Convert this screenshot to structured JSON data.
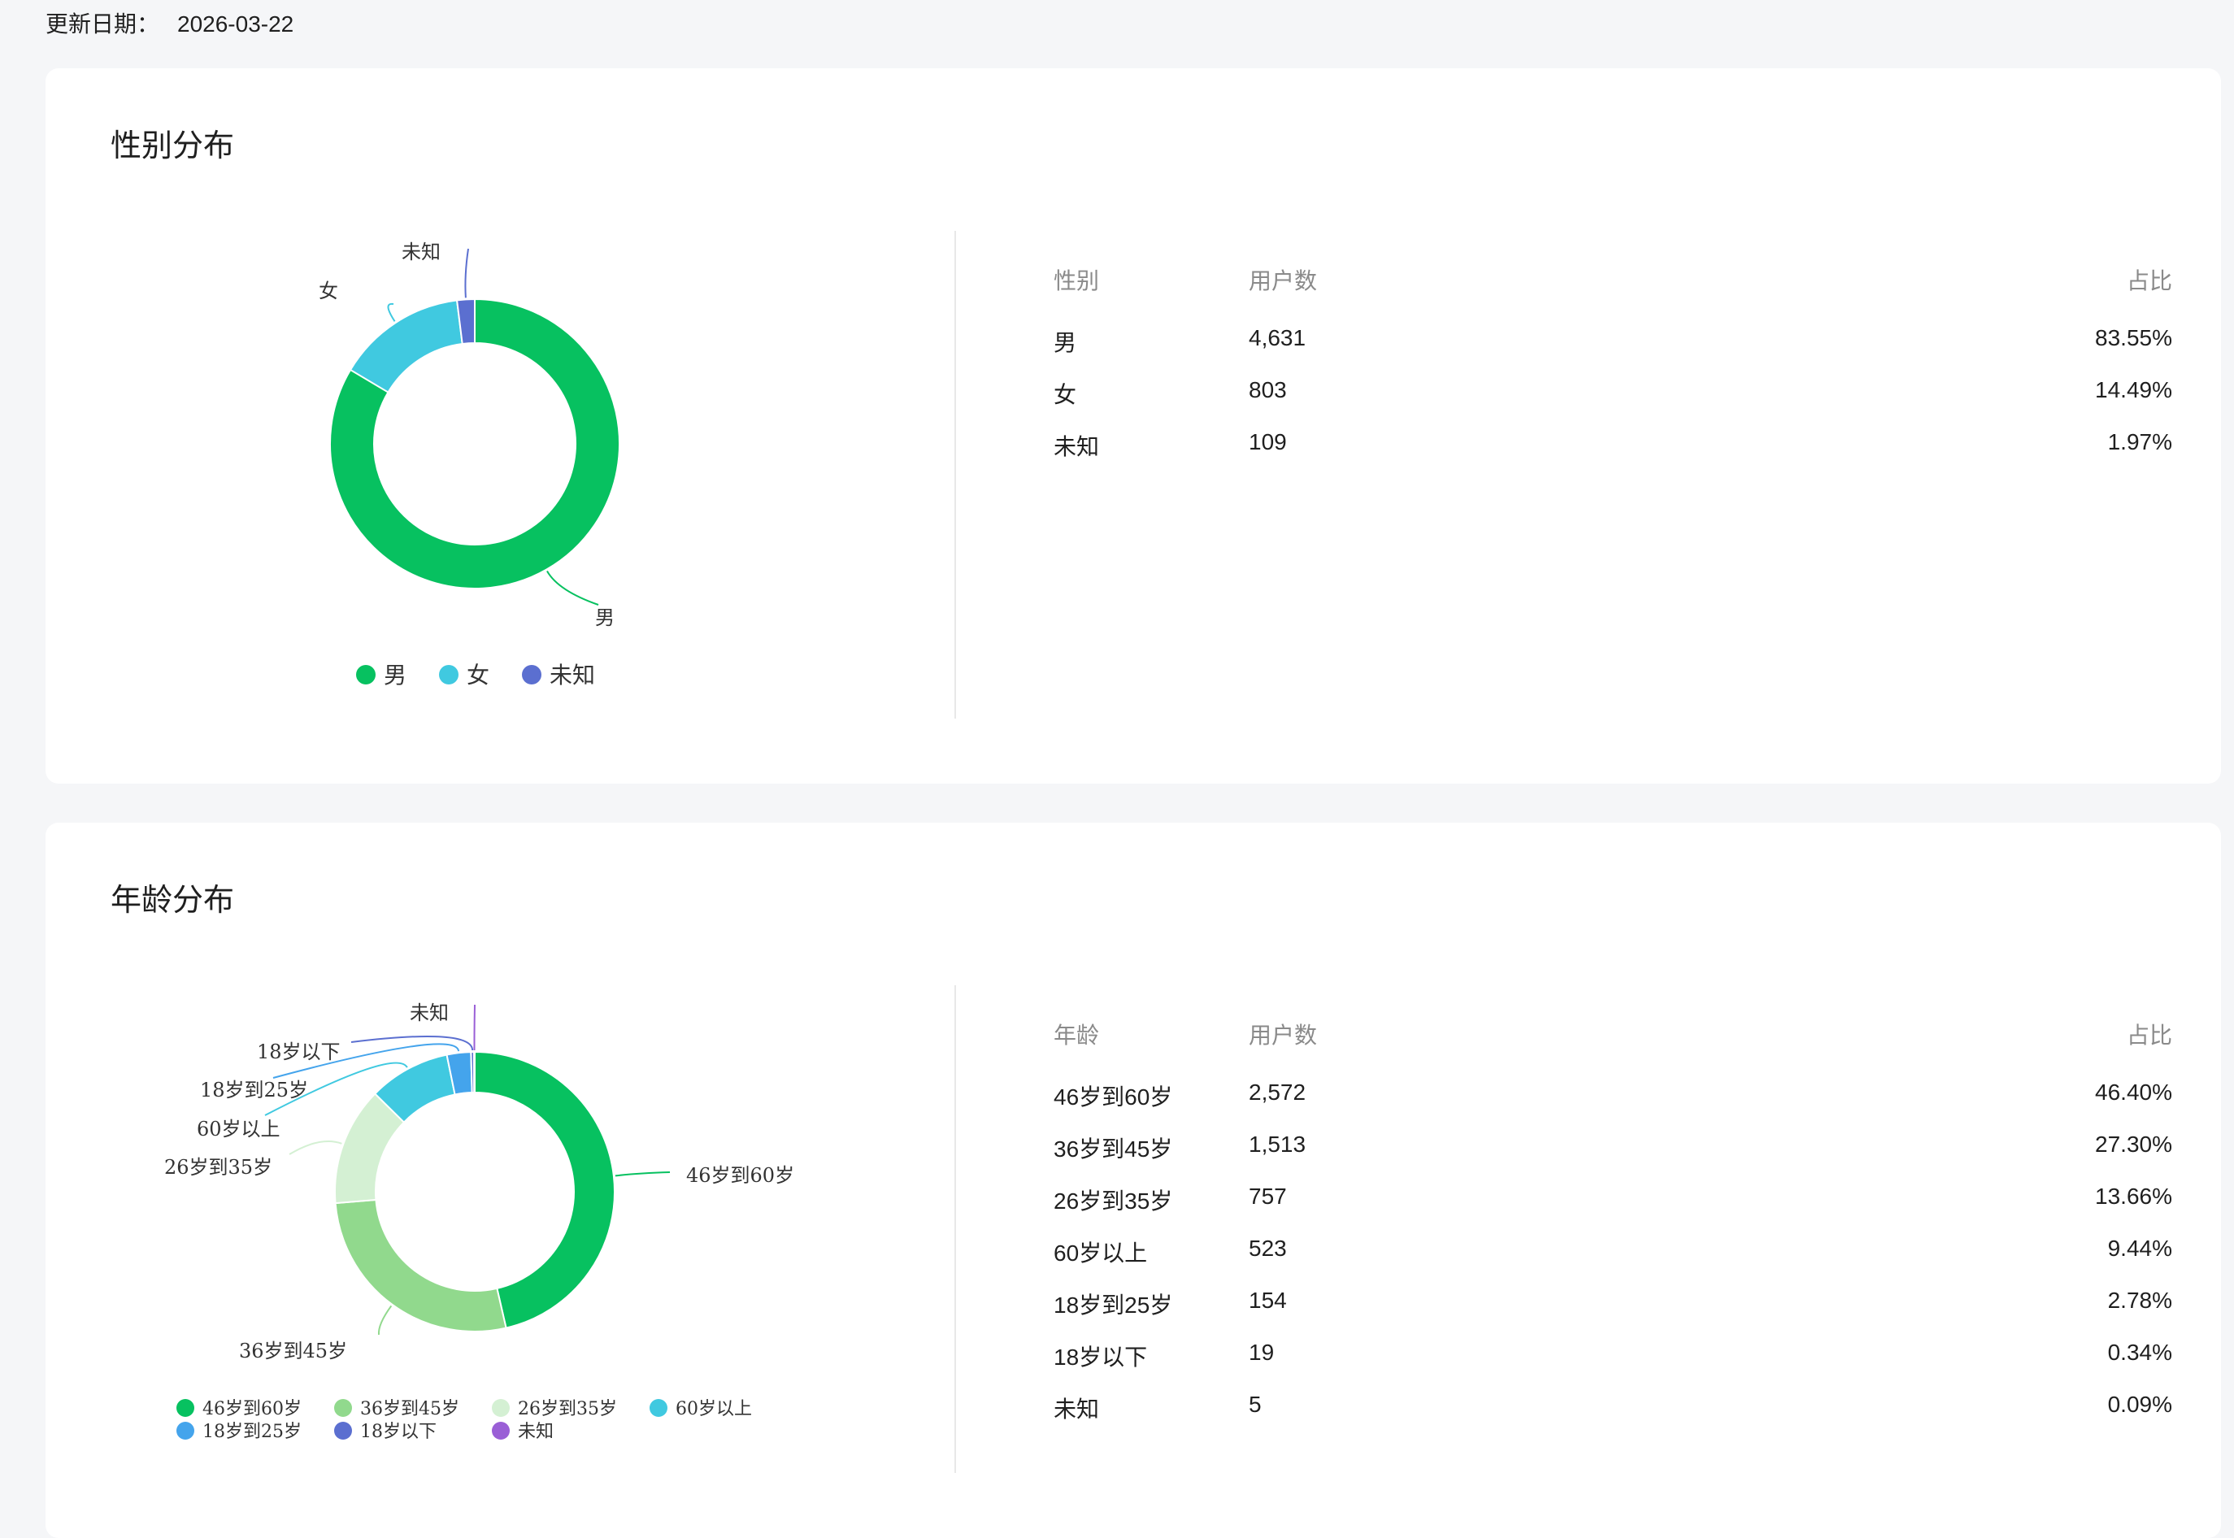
{
  "header": {
    "update_label": "更新日期：",
    "update_date": "2026-03-22"
  },
  "gender": {
    "title": "性别分布",
    "table": {
      "headers": [
        "性别",
        "用户数",
        "占比"
      ],
      "rows": [
        [
          "男",
          "4,631",
          "83.55%"
        ],
        [
          "女",
          "803",
          "14.49%"
        ],
        [
          "未知",
          "109",
          "1.97%"
        ]
      ]
    }
  },
  "age": {
    "title": "年龄分布",
    "table": {
      "headers": [
        "年龄",
        "用户数",
        "占比"
      ],
      "rows": [
        [
          "46岁到60岁",
          "2,572",
          "46.40%"
        ],
        [
          "36岁到45岁",
          "1,513",
          "27.30%"
        ],
        [
          "26岁到35岁",
          "757",
          "13.66%"
        ],
        [
          "60岁以上",
          "523",
          "9.44%"
        ],
        [
          "18岁到25岁",
          "154",
          "2.78%"
        ],
        [
          "18岁以下",
          "19",
          "0.34%"
        ],
        [
          "未知",
          "5",
          "0.09%"
        ]
      ]
    }
  },
  "chart_data": [
    {
      "type": "pie",
      "style": "donut",
      "categories": [
        "男",
        "女",
        "未知"
      ],
      "values": [
        4631,
        803,
        109
      ],
      "colors": [
        "#07c160",
        "#40c9e0",
        "#5b6fd0"
      ],
      "legend": "bottom-center",
      "legend_labels": [
        "男",
        "女",
        "未知"
      ]
    },
    {
      "type": "pie",
      "style": "donut",
      "categories": [
        "46岁到60岁",
        "36岁到45岁",
        "26岁到35岁",
        "60岁以上",
        "18岁到25岁",
        "18岁以下",
        "未知"
      ],
      "values": [
        2572,
        1513,
        757,
        523,
        154,
        19,
        5
      ],
      "colors": [
        "#07c160",
        "#91d98d",
        "#d4f0d3",
        "#40c9e0",
        "#44a4ec",
        "#5b6fd0",
        "#9a5fd6"
      ],
      "legend": "bottom-center",
      "legend_labels": [
        "46岁到60岁",
        "36岁到45岁",
        "26岁到35岁",
        "60岁以上",
        "18岁到25岁",
        "18岁以下",
        "未知"
      ]
    }
  ]
}
